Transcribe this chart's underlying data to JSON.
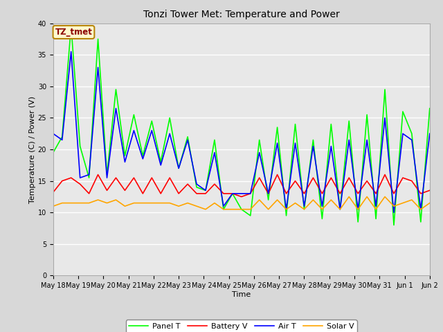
{
  "title": "Tonzi Tower Met: Temperature and Power",
  "xlabel": "Time",
  "ylabel": "Temperature (C) / Power (V)",
  "ylim": [
    0,
    40
  ],
  "yticks": [
    0,
    5,
    10,
    15,
    20,
    25,
    30,
    35,
    40
  ],
  "annotation_text": "TZ_tmet",
  "annotation_color": "#8B0000",
  "annotation_bg": "#FFFACD",
  "annotation_border": "#B8860B",
  "bg_color": "#E8E8E8",
  "grid_color": "#FFFFFF",
  "legend_labels": [
    "Panel T",
    "Battery V",
    "Air T",
    "Solar V"
  ],
  "legend_colors": [
    "#00FF00",
    "#FF0000",
    "#0000FF",
    "#FFA500"
  ],
  "panel_t": [
    19.5,
    22.0,
    39.5,
    20.5,
    15.5,
    37.5,
    16.0,
    29.5,
    19.0,
    25.5,
    19.0,
    24.5,
    18.0,
    25.0,
    17.0,
    22.0,
    14.0,
    13.5,
    21.5,
    10.5,
    13.0,
    10.5,
    9.5,
    21.5,
    12.0,
    23.5,
    9.5,
    24.0,
    10.5,
    21.5,
    9.0,
    24.0,
    10.5,
    24.5,
    8.5,
    25.5,
    9.0,
    29.5,
    8.0,
    26.0,
    22.5,
    8.5,
    26.5
  ],
  "battery_v": [
    13.2,
    15.0,
    15.5,
    14.5,
    13.0,
    16.0,
    13.5,
    15.5,
    13.5,
    15.5,
    13.0,
    15.5,
    13.0,
    15.5,
    13.0,
    14.5,
    13.0,
    13.0,
    14.5,
    13.0,
    13.0,
    12.5,
    13.0,
    15.5,
    13.0,
    16.0,
    13.0,
    15.0,
    13.0,
    15.5,
    13.0,
    15.5,
    13.0,
    15.5,
    13.0,
    15.0,
    13.0,
    16.0,
    13.0,
    15.5,
    15.0,
    13.0,
    13.5
  ],
  "air_t": [
    22.5,
    21.5,
    35.5,
    15.5,
    16.0,
    33.0,
    15.5,
    26.5,
    18.0,
    23.0,
    18.5,
    23.0,
    17.5,
    22.5,
    17.0,
    21.5,
    14.5,
    13.5,
    19.5,
    11.0,
    13.0,
    13.0,
    13.0,
    19.5,
    13.0,
    21.0,
    10.5,
    21.0,
    11.0,
    20.5,
    11.0,
    20.5,
    10.5,
    21.5,
    10.5,
    21.5,
    11.0,
    25.0,
    10.0,
    22.5,
    21.5,
    10.5,
    22.5
  ],
  "solar_v": [
    11.0,
    11.5,
    11.5,
    11.5,
    11.5,
    12.0,
    11.5,
    12.0,
    11.0,
    11.5,
    11.5,
    11.5,
    11.5,
    11.5,
    11.0,
    11.5,
    11.0,
    10.5,
    11.5,
    10.5,
    10.5,
    10.5,
    10.5,
    12.0,
    10.5,
    12.0,
    10.5,
    11.5,
    10.5,
    12.0,
    10.5,
    12.0,
    10.5,
    12.5,
    10.5,
    12.5,
    10.5,
    12.5,
    11.0,
    11.5,
    12.0,
    10.5,
    11.5
  ],
  "x_tick_labels": [
    "May 18",
    "May 19",
    "May 20",
    "May 21",
    "May 22",
    "May 23",
    "May 24",
    "May 25",
    "May 26",
    "May 27",
    "May 28",
    "May 29",
    "May 30",
    "May 31",
    "Jun 1",
    "Jun 2"
  ],
  "line_width": 1.2,
  "figsize": [
    6.4,
    4.8
  ],
  "dpi": 100,
  "title_fontsize": 10,
  "tick_fontsize": 7,
  "label_fontsize": 8,
  "legend_fontsize": 8
}
